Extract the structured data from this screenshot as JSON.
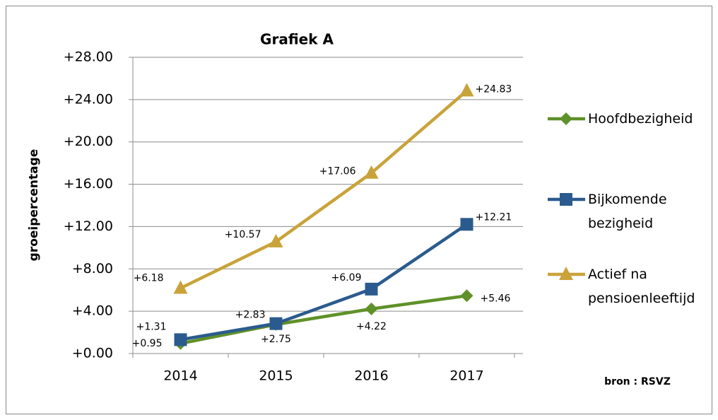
{
  "chart_data": {
    "type": "line",
    "title": "Grafiek A",
    "y_label": "groeipercentage",
    "source": "bron : RSVZ",
    "categories": [
      "2014",
      "2015",
      "2016",
      "2017"
    ],
    "series": [
      {
        "name": "Hoofdbezigheid",
        "color": "#5f9128",
        "marker": "diamond",
        "values": [
          0.95,
          2.75,
          4.22,
          5.46
        ],
        "value_labels": [
          "+0.95",
          "+2.75",
          "+4.22",
          "+5.46"
        ]
      },
      {
        "name": "Bijkomende bezigheid",
        "color": "#2b5b8e",
        "marker": "square",
        "values": [
          1.31,
          2.83,
          6.09,
          12.21
        ],
        "value_labels": [
          "+1.31",
          "+2.83",
          "+6.09",
          "+12.21"
        ]
      },
      {
        "name": "Actief na pensioenleeftijd",
        "color": "#c9a33a",
        "marker": "triangle",
        "values": [
          6.18,
          10.57,
          17.06,
          24.83
        ],
        "value_labels": [
          "+6.18",
          "+10.57",
          "+17.06",
          "+24.83"
        ]
      }
    ],
    "ylim": [
      0,
      28
    ],
    "yticks": [
      {
        "value": 0,
        "label": "+0.00"
      },
      {
        "value": 4,
        "label": "+4.00"
      },
      {
        "value": 8,
        "label": "+8.00"
      },
      {
        "value": 12,
        "label": "+12.00"
      },
      {
        "value": 16,
        "label": "+16.00"
      },
      {
        "value": 20,
        "label": "+20.00"
      },
      {
        "value": 24,
        "label": "+24.00"
      },
      {
        "value": 28,
        "label": "+28.00"
      }
    ],
    "grid": true,
    "legend": "right"
  }
}
